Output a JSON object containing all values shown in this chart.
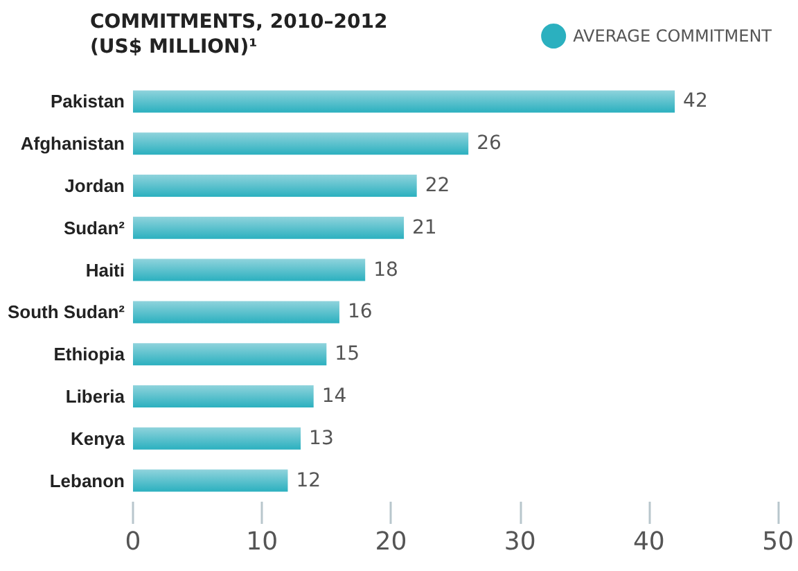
{
  "chart_data": {
    "type": "bar",
    "orientation": "horizontal",
    "title": "COMMITMENTS, 2010–2012\n(US$ MILLION)¹",
    "categories": [
      "Pakistan",
      "Afghanistan",
      "Jordan",
      "Sudan²",
      "Haiti",
      "South Sudan²",
      "Ethiopia",
      "Liberia",
      "Kenya",
      "Lebanon"
    ],
    "series": [
      {
        "name": "AVERAGE COMMITMENT",
        "color": "#2bb0bf",
        "values": [
          42,
          26,
          22,
          21,
          18,
          16,
          15,
          14,
          13,
          12
        ]
      }
    ],
    "xlim": [
      0,
      50
    ],
    "xticks": [
      0,
      10,
      20,
      30,
      40,
      50
    ],
    "data_labels": true,
    "legend": "top right",
    "grid": false
  }
}
